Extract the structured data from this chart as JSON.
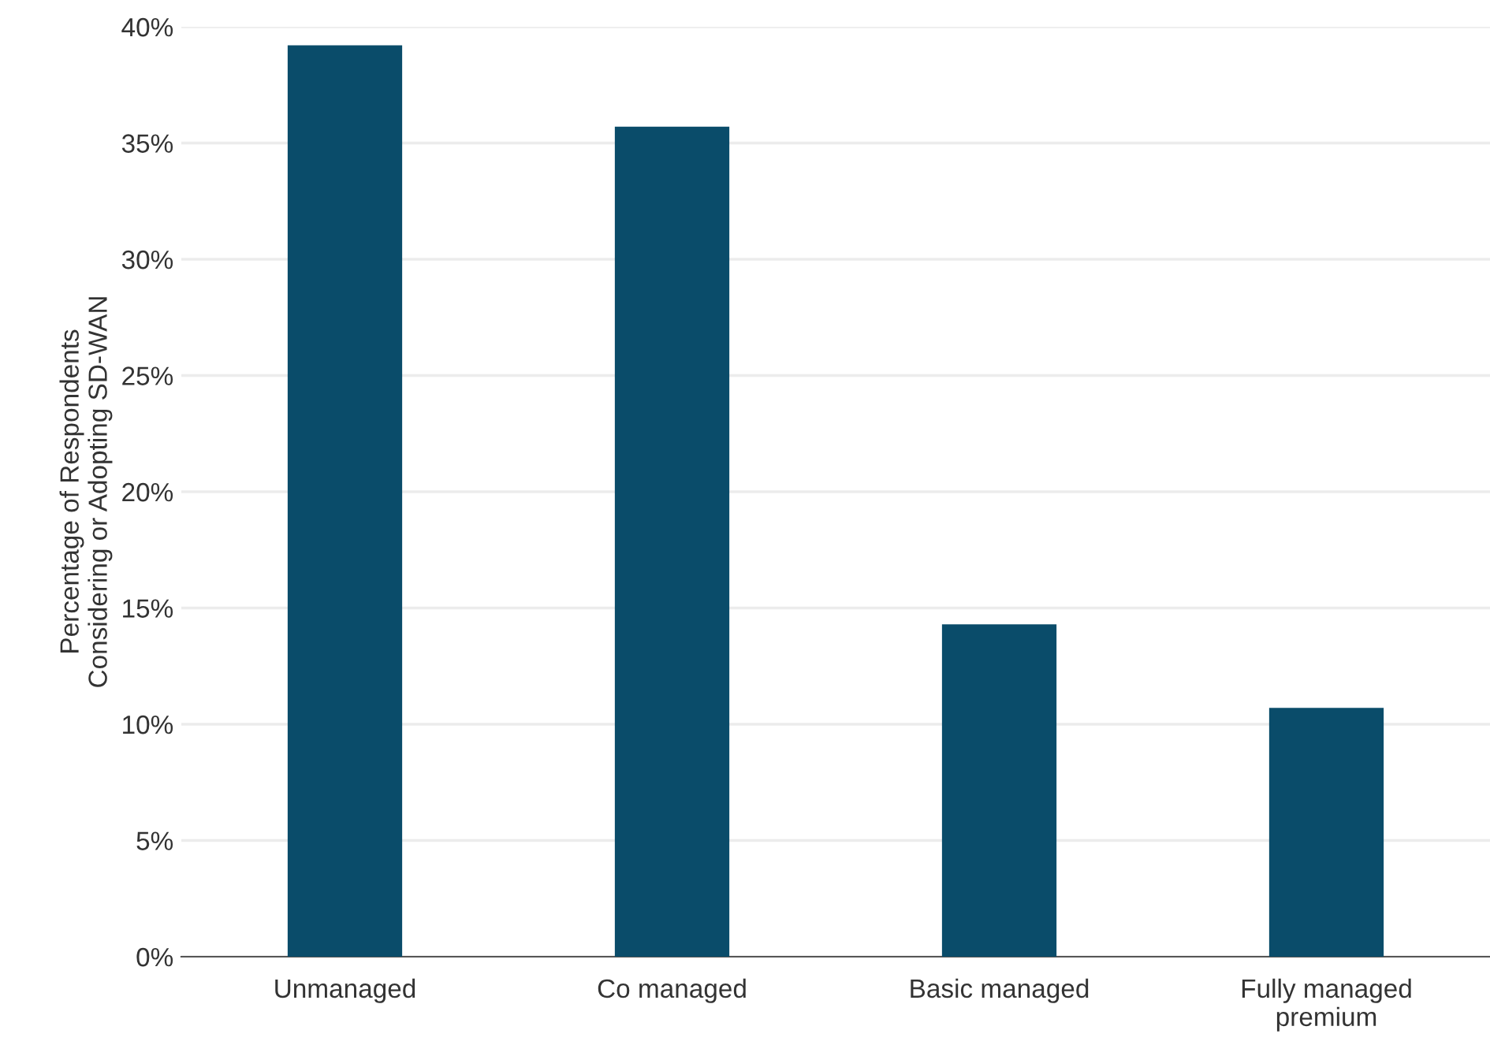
{
  "chart_data": {
    "type": "bar",
    "ylabel": "Percentage of Respondents\nConsidering or Adopting SD-WAN",
    "categories": [
      "Unmanaged",
      "Co managed",
      "Basic managed",
      "Fully managed\npremium"
    ],
    "values": [
      39.2,
      35.7,
      14.3,
      10.7
    ],
    "color": "#0a4c6a",
    "ylim": [
      0,
      40
    ],
    "yticks": [
      {
        "value": 0,
        "label": "0%"
      },
      {
        "value": 5,
        "label": "5%"
      },
      {
        "value": 10,
        "label": "10%"
      },
      {
        "value": 15,
        "label": "15%"
      },
      {
        "value": 20,
        "label": "20%"
      },
      {
        "value": 25,
        "label": "25%"
      },
      {
        "value": 30,
        "label": "30%"
      },
      {
        "value": 35,
        "label": "35%"
      },
      {
        "value": 40,
        "label": "40%"
      }
    ],
    "grid": "y"
  }
}
